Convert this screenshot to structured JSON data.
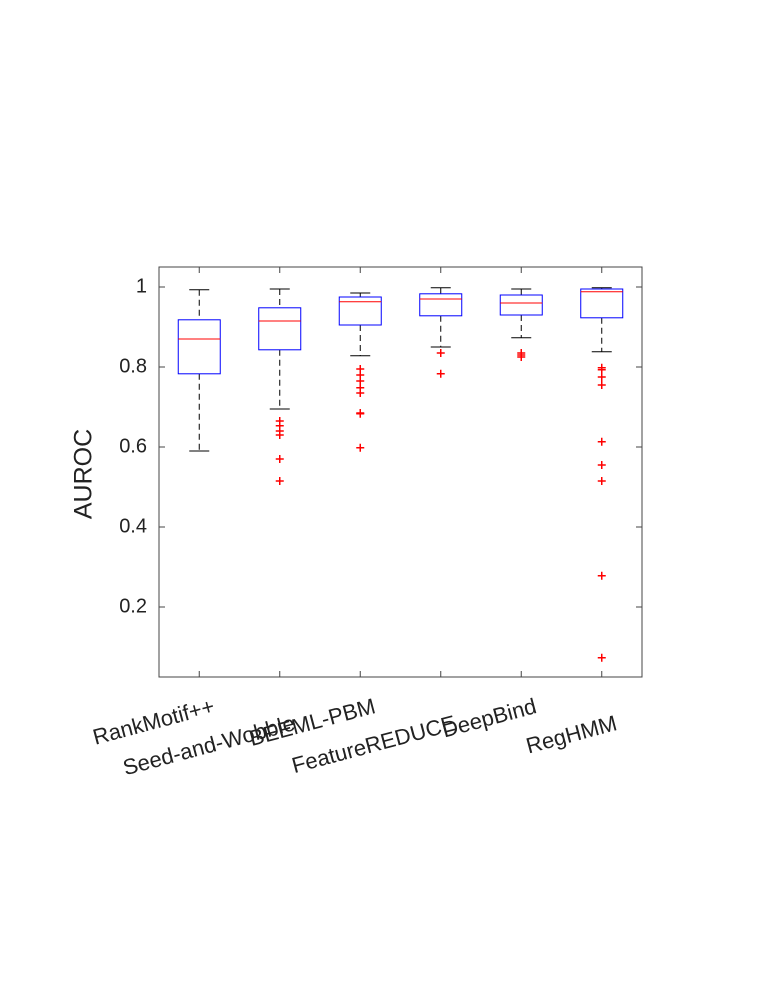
{
  "chart_data": {
    "type": "box",
    "y_label": "AUROC",
    "categories": [
      "RankMotif++",
      "Seed-and-Wobble",
      "BEEML-PBM",
      "FeatureREDUCE",
      "DeepBind",
      "RegHMM"
    ],
    "boxes": [
      {
        "whisker_low": 0.59,
        "q1": 0.783,
        "median": 0.87,
        "q3": 0.918,
        "whisker_high": 0.993,
        "outliers": []
      },
      {
        "whisker_low": 0.695,
        "q1": 0.843,
        "median": 0.915,
        "q3": 0.948,
        "whisker_high": 0.995,
        "outliers": [
          0.665,
          0.653,
          0.64,
          0.63,
          0.57,
          0.515
        ]
      },
      {
        "whisker_low": 0.828,
        "q1": 0.905,
        "median": 0.963,
        "q3": 0.975,
        "whisker_high": 0.985,
        "outliers": [
          0.795,
          0.78,
          0.765,
          0.748,
          0.735,
          0.685,
          0.683,
          0.598
        ]
      },
      {
        "whisker_low": 0.85,
        "q1": 0.928,
        "median": 0.97,
        "q3": 0.983,
        "whisker_high": 0.998,
        "outliers": [
          0.835,
          0.783
        ]
      },
      {
        "whisker_low": 0.873,
        "q1": 0.93,
        "median": 0.96,
        "q3": 0.98,
        "whisker_high": 0.995,
        "outliers": [
          0.835,
          0.83,
          0.825
        ]
      },
      {
        "whisker_low": 0.838,
        "q1": 0.923,
        "median": 0.988,
        "q3": 0.995,
        "whisker_high": 0.998,
        "outliers": [
          0.798,
          0.793,
          0.775,
          0.755,
          0.613,
          0.555,
          0.515,
          0.278,
          0.073
        ]
      }
    ],
    "box_color": "#0000ff",
    "median_color": "#ff0000",
    "outlier_color": "#ff0000",
    "whisker_color": "#000000",
    "ylim": [
      0.025,
      1.05
    ],
    "yticks": [
      0.2,
      0.4,
      0.6,
      0.8,
      1
    ]
  }
}
